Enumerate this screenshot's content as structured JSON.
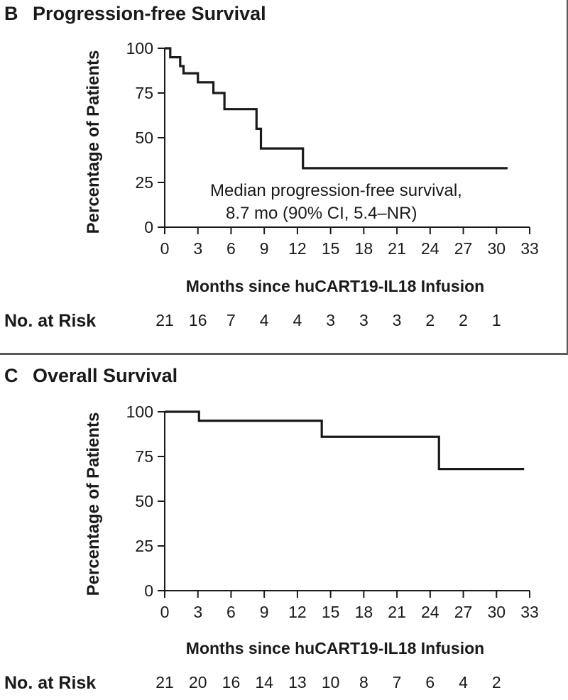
{
  "chart_data": [
    {
      "panel": "B",
      "type": "line",
      "title": "Progression-free Survival",
      "xlabel": "Months since huCART19-IL18 Infusion",
      "ylabel": "Percentage of Patients",
      "xlim": [
        0,
        33
      ],
      "ylim": [
        0,
        100
      ],
      "xticks": [
        0,
        3,
        6,
        9,
        12,
        15,
        18,
        21,
        24,
        27,
        30,
        33
      ],
      "yticks": [
        0,
        25,
        50,
        75,
        100
      ],
      "series": [
        {
          "name": "Progression-free survival",
          "step": true,
          "x": [
            0,
            0.5,
            1.4,
            1.7,
            3.0,
            4.4,
            5.4,
            8.3,
            8.7,
            12.5,
            31.0
          ],
          "y": [
            100,
            95,
            90,
            86,
            81,
            75,
            66,
            55,
            44,
            33,
            33
          ]
        }
      ],
      "annotation": [
        "Median progression-free survival,",
        "8.7 mo (90% CI, 5.4–NR)"
      ],
      "risk_label": "No. at Risk",
      "risk_counts": [
        "21",
        "16",
        "7",
        "4",
        "4",
        "3",
        "3",
        "3",
        "2",
        "2",
        "1"
      ]
    },
    {
      "panel": "C",
      "type": "line",
      "title": "Overall Survival",
      "xlabel": "Months since huCART19-IL18 Infusion",
      "ylabel": "Percentage of Patients",
      "xlim": [
        0,
        33
      ],
      "ylim": [
        0,
        100
      ],
      "xticks": [
        0,
        3,
        6,
        9,
        12,
        15,
        18,
        21,
        24,
        27,
        30,
        33
      ],
      "yticks": [
        0,
        25,
        50,
        75,
        100
      ],
      "series": [
        {
          "name": "Overall survival",
          "step": true,
          "x": [
            0,
            3.1,
            14.2,
            24.8,
            32.5
          ],
          "y": [
            100,
            95,
            86,
            68,
            68
          ]
        }
      ],
      "risk_label": "No. at Risk",
      "risk_counts": [
        "21",
        "20",
        "16",
        "14",
        "13",
        "10",
        "8",
        "7",
        "6",
        "4",
        "2"
      ]
    }
  ]
}
